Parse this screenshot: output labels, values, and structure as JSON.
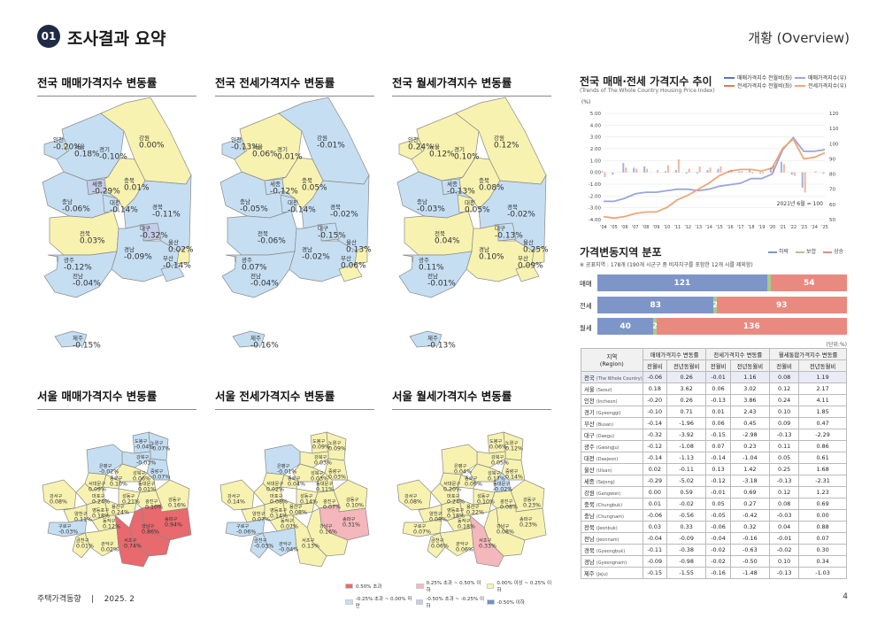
{
  "header": {
    "section_number": "01",
    "section_title": "조사결과 요약",
    "overview": "개황 (Overview)"
  },
  "legend_colors": {
    "over_050": "#e8696e",
    "p025_050": "#f4b7bb",
    "p000_025": "#f7f2b0",
    "m025_000": "#c5def2",
    "m050_m025": "#c3cce8",
    "under_m050": "#6f8fc6"
  },
  "maps": {
    "nation_sale": {
      "title": "전국 매매가격지수 변동률",
      "labels": [
        {
          "name": "인천",
          "value": "-0.20%"
        },
        {
          "name": "서울",
          "value": "0.18%"
        },
        {
          "name": "경기",
          "value": "-0.10%"
        },
        {
          "name": "강원",
          "value": "0.00%"
        },
        {
          "name": "세종",
          "value": "-0.29%"
        },
        {
          "name": "충북",
          "value": "0.01%"
        },
        {
          "name": "충남",
          "value": "-0.06%"
        },
        {
          "name": "대전",
          "value": "-0.14%"
        },
        {
          "name": "경북",
          "value": "-0.11%"
        },
        {
          "name": "대구",
          "value": "-0.32%"
        },
        {
          "name": "울산",
          "value": "0.02%"
        },
        {
          "name": "전북",
          "value": "0.03%"
        },
        {
          "name": "경남",
          "value": "-0.09%"
        },
        {
          "name": "광주",
          "value": "-0.12%"
        },
        {
          "name": "부산",
          "value": "-0.14%"
        },
        {
          "name": "전남",
          "value": "-0.04%"
        },
        {
          "name": "제주",
          "value": "-0.15%"
        }
      ]
    },
    "nation_jeonse": {
      "title": "전국 전세가격지수 변동률",
      "labels": [
        {
          "name": "인천",
          "value": "-0.13%"
        },
        {
          "name": "서울",
          "value": "0.06%"
        },
        {
          "name": "경기",
          "value": "0.01%"
        },
        {
          "name": "강원",
          "value": "-0.01%"
        },
        {
          "name": "세종",
          "value": "-0.12%"
        },
        {
          "name": "충북",
          "value": "0.05%"
        },
        {
          "name": "충남",
          "value": "-0.05%"
        },
        {
          "name": "대전",
          "value": "-0.14%"
        },
        {
          "name": "경북",
          "value": "-0.02%"
        },
        {
          "name": "대구",
          "value": "-0.15%"
        },
        {
          "name": "울산",
          "value": "0.13%"
        },
        {
          "name": "전북",
          "value": "-0.06%"
        },
        {
          "name": "경남",
          "value": "-0.02%"
        },
        {
          "name": "광주",
          "value": "0.07%"
        },
        {
          "name": "부산",
          "value": "0.06%"
        },
        {
          "name": "전남",
          "value": "-0.04%"
        },
        {
          "name": "제주",
          "value": "-0.16%"
        }
      ]
    },
    "nation_monthly": {
      "title": "전국 월세가격지수 변동률",
      "labels": [
        {
          "name": "인천",
          "value": "0.24%"
        },
        {
          "name": "서울",
          "value": "0.12%"
        },
        {
          "name": "경기",
          "value": "0.10%"
        },
        {
          "name": "강원",
          "value": "0.12%"
        },
        {
          "name": "세종",
          "value": "-0.13%"
        },
        {
          "name": "충북",
          "value": "0.08%"
        },
        {
          "name": "충남",
          "value": "-0.03%"
        },
        {
          "name": "대전",
          "value": "0.05%"
        },
        {
          "name": "경북",
          "value": "-0.02%"
        },
        {
          "name": "대구",
          "value": "-0.13%"
        },
        {
          "name": "울산",
          "value": "0.25%"
        },
        {
          "name": "전북",
          "value": "0.04%"
        },
        {
          "name": "경남",
          "value": "0.10%"
        },
        {
          "name": "광주",
          "value": "0.11%"
        },
        {
          "name": "부산",
          "value": "0.09%"
        },
        {
          "name": "전남",
          "value": "-0.01%"
        },
        {
          "name": "제주",
          "value": "-0.13%"
        }
      ]
    },
    "seoul_sale": {
      "title": "서울 매매가격지수 변동률",
      "labels": [
        {
          "name": "도봉구",
          "value": "-0.04%"
        },
        {
          "name": "노원구",
          "value": "-0.07%"
        },
        {
          "name": "강북구",
          "value": "-0.03%"
        },
        {
          "name": "은평구",
          "value": "-0.02%"
        },
        {
          "name": "성북구",
          "value": "0.06%"
        },
        {
          "name": "중랑구",
          "value": "-0.07%"
        },
        {
          "name": "종로구",
          "value": "0.10%"
        },
        {
          "name": "동대문구",
          "value": "0.01%"
        },
        {
          "name": "서대문구",
          "value": "0.09%"
        },
        {
          "name": "강서구",
          "value": "0.08%"
        },
        {
          "name": "마포구",
          "value": "0.24%"
        },
        {
          "name": "성동구",
          "value": "0.21%"
        },
        {
          "name": "광진구",
          "value": "0.10%"
        },
        {
          "name": "강동구",
          "value": "0.16%"
        },
        {
          "name": "양천구",
          "value": "0.11%"
        },
        {
          "name": "영등포구",
          "value": "0.18%"
        },
        {
          "name": "용산구",
          "value": "0.24%"
        },
        {
          "name": "송파구",
          "value": "0.94%"
        },
        {
          "name": "구로구",
          "value": "-0.03%"
        },
        {
          "name": "동작구",
          "value": "0.12%"
        },
        {
          "name": "강남구",
          "value": "0.86%"
        },
        {
          "name": "금천구",
          "value": "0.01%"
        },
        {
          "name": "관악구",
          "value": "0.02%"
        },
        {
          "name": "서초구",
          "value": "0.74%"
        }
      ]
    },
    "seoul_jeonse": {
      "title": "서울 전세가격지수 변동률",
      "labels": [
        {
          "name": "도봉구",
          "value": "0.09%"
        },
        {
          "name": "노원구",
          "value": "0.09%"
        },
        {
          "name": "강북구",
          "value": "0.03%"
        },
        {
          "name": "은평구",
          "value": "-0.01%"
        },
        {
          "name": "성북구",
          "value": "0.03%"
        },
        {
          "name": "중랑구",
          "value": "0.03%"
        },
        {
          "name": "종로구",
          "value": "0.04%"
        },
        {
          "name": "동대문구",
          "value": "0.11%"
        },
        {
          "name": "서대문구",
          "value": "0.02%"
        },
        {
          "name": "강서구",
          "value": "0.14%"
        },
        {
          "name": "마포구",
          "value": "0.08%"
        },
        {
          "name": "성동구",
          "value": "0.14%"
        },
        {
          "name": "광진구",
          "value": "0.07%"
        },
        {
          "name": "강동구",
          "value": "0.10%"
        },
        {
          "name": "양천구",
          "value": "0.07%"
        },
        {
          "name": "영등포구",
          "value": "0.14%"
        },
        {
          "name": "용산구",
          "value": "0.08%"
        },
        {
          "name": "송파구",
          "value": "0.31%"
        },
        {
          "name": "구로구",
          "value": "-0.06%"
        },
        {
          "name": "동작구",
          "value": "0.07%"
        },
        {
          "name": "강남구",
          "value": "0.16%"
        },
        {
          "name": "금천구",
          "value": "-0.03%"
        },
        {
          "name": "관악구",
          "value": "-0.04%"
        },
        {
          "name": "서초구",
          "value": "0.13%"
        }
      ]
    },
    "seoul_monthly": {
      "title": "서울 월세가격지수 변동률",
      "labels": [
        {
          "name": "도봉구",
          "value": "0.06%"
        },
        {
          "name": "노원구",
          "value": "0.12%"
        },
        {
          "name": "강북구",
          "value": "0.05%"
        },
        {
          "name": "은평구",
          "value": "0.04%"
        },
        {
          "name": "성북구",
          "value": "0.17%"
        },
        {
          "name": "중랑구",
          "value": "0.14%"
        },
        {
          "name": "종로구",
          "value": "0.09%"
        },
        {
          "name": "동대문구",
          "value": "-0.02%"
        },
        {
          "name": "서대문구",
          "value": "0.20%"
        },
        {
          "name": "강서구",
          "value": "0.08%"
        },
        {
          "name": "마포구",
          "value": "0.24%"
        },
        {
          "name": "성동구",
          "value": "0.10%"
        },
        {
          "name": "광진구",
          "value": "0.08%"
        },
        {
          "name": "강동구",
          "value": "0.23%"
        },
        {
          "name": "양천구",
          "value": "0.08%"
        },
        {
          "name": "영등포구",
          "value": "0.18%"
        },
        {
          "name": "용산구",
          "value": "0.22%"
        },
        {
          "name": "송파구",
          "value": "0.23%"
        },
        {
          "name": "구로구",
          "value": "0.07%"
        },
        {
          "name": "동작구",
          "value": "0.18%"
        },
        {
          "name": "강남구",
          "value": "0.08%"
        },
        {
          "name": "금천구",
          "value": "0.06%"
        },
        {
          "name": "관악구",
          "value": "0.06%"
        },
        {
          "name": "서초구",
          "value": "0.33%"
        }
      ]
    }
  },
  "map_legend": [
    "0.50% 초과",
    "0.25% 초과 ~ 0.50% 이하",
    "0.00% 이상 ~ 0.25% 이하",
    "-0.25% 초과 ~ 0.00% 미만",
    "-0.50% 초과 ~ -0.25% 이하",
    "-0.50% 이하"
  ],
  "trend_chart": {
    "title": "전국 매매·전세 가격지수 추이",
    "subtitle": "(Trends of The Whole Country Housing Price Index)",
    "left_unit": "(%)",
    "note": "2021년 6월 = 100",
    "legend": [
      {
        "label": "매매가격지수 전월비(좌)",
        "color": "#5b73b9"
      },
      {
        "label": "매매가격지수(우)",
        "color": "#9aa6dc"
      },
      {
        "label": "전세가격지수 전월비(좌)",
        "color": "#e07a5a"
      },
      {
        "label": "전세가격지수(우)",
        "color": "#f0a576"
      }
    ]
  },
  "chart_data": {
    "type": "line",
    "x": [
      "'04",
      "'05",
      "'06",
      "'07",
      "'08",
      "'09",
      "'10",
      "'11",
      "'12",
      "'13",
      "'14",
      "'15",
      "'16",
      "'17",
      "'18",
      "'19",
      "'20",
      "'21",
      "'22",
      "'23",
      "'24",
      "'25"
    ],
    "left_ylim": [
      -4,
      5
    ],
    "left_ticks": [
      "5.00",
      "4.00",
      "3.00",
      "2.00",
      "1.00",
      "0.00",
      "-1.00",
      "-2.00",
      "-3.00",
      "-4.00"
    ],
    "right_ylim": [
      50,
      120
    ],
    "right_ticks": [
      "120",
      "110",
      "100",
      "90",
      "80",
      "70",
      "60",
      "50"
    ],
    "series": [
      {
        "name": "매매가격지수(우)",
        "axis": "right",
        "values": [
          62,
          62,
          64,
          67,
          68,
          68,
          69,
          70,
          70,
          69,
          70,
          72,
          73,
          74,
          77,
          77,
          80,
          96,
          104,
          95,
          95,
          96
        ]
      },
      {
        "name": "전세가격지수(우)",
        "axis": "right",
        "values": [
          52,
          51,
          52,
          54,
          55,
          55,
          58,
          63,
          66,
          70,
          74,
          79,
          82,
          83,
          83,
          82,
          84,
          97,
          103,
          90,
          91,
          94
        ]
      },
      {
        "name": "매매가격지수 전월비(좌)",
        "axis": "left",
        "values": [
          0.1,
          -0.2,
          0.8,
          0.4,
          0.5,
          0.0,
          0.1,
          0.2,
          -0.1,
          -0.1,
          0.2,
          0.3,
          0.1,
          0.1,
          0.2,
          -0.1,
          0.4,
          0.9,
          -0.2,
          -1.3,
          0.0,
          -0.1
        ]
      },
      {
        "name": "전세가격지수 전월비(좌)",
        "axis": "left",
        "values": [
          -0.4,
          0.0,
          0.4,
          0.3,
          0.3,
          0.2,
          0.6,
          1.1,
          0.3,
          0.5,
          0.4,
          0.5,
          0.2,
          0.1,
          -0.1,
          -0.1,
          0.6,
          0.7,
          -0.3,
          -1.7,
          0.1,
          0.0
        ]
      }
    ]
  },
  "distribution": {
    "title": "가격변동지역 분포",
    "note": "※ 공표지역 : 178개 (190개 시군구 중 비자치구를 포함한 12개 시를 제외함)",
    "legend": [
      {
        "label": "하락",
        "color": "#7e95c8"
      },
      {
        "label": "보합",
        "color": "#a8c98a"
      },
      {
        "label": "상승",
        "color": "#e98a80"
      }
    ],
    "rows": [
      {
        "label": "매매",
        "fall": 121,
        "flat": 3,
        "rise": 54,
        "fall_label": "121",
        "flat_label": "",
        "rise_label": "54"
      },
      {
        "label": "전세",
        "fall": 83,
        "flat": 2,
        "rise": 93,
        "fall_label": "83",
        "flat_label": "2",
        "rise_label": "93"
      },
      {
        "label": "월세",
        "fall": 40,
        "flat": 2,
        "rise": 136,
        "fall_label": "40",
        "flat_label": "2",
        "rise_label": "136"
      }
    ]
  },
  "table": {
    "unit": "(단위:%)",
    "h_region": "지역",
    "h_region_en": "(Region)",
    "groups": [
      "매매가격지수 변동률",
      "전세가격지수 변동률",
      "월세통합가격지수 변동률"
    ],
    "subheaders": [
      "전월비",
      "전년동월비",
      "전월비",
      "전년동월비",
      "전월비",
      "전년동월비"
    ],
    "rows": [
      {
        "ko": "전국",
        "en": "(The Whole Country)",
        "v": [
          "-0.06",
          "0.26",
          "-0.01",
          "1.16",
          "0.08",
          "1.19"
        ]
      },
      {
        "ko": "서울",
        "en": "(Seoul)",
        "v": [
          "0.18",
          "3.62",
          "0.06",
          "3.02",
          "0.12",
          "2.17"
        ]
      },
      {
        "ko": "인천",
        "en": "(Incheon)",
        "v": [
          "-0.20",
          "0.26",
          "-0.13",
          "3.86",
          "0.24",
          "4.11"
        ]
      },
      {
        "ko": "경기",
        "en": "(Gyeonggi)",
        "v": [
          "-0.10",
          "0.71",
          "0.01",
          "2.43",
          "0.10",
          "1.85"
        ]
      },
      {
        "ko": "부산",
        "en": "(Busan)",
        "v": [
          "-0.14",
          "-1.96",
          "0.06",
          "0.45",
          "0.09",
          "0.47"
        ]
      },
      {
        "ko": "대구",
        "en": "(Daegu)",
        "v": [
          "-0.32",
          "-3.92",
          "-0.15",
          "-2.98",
          "-0.13",
          "-2.29"
        ]
      },
      {
        "ko": "광주",
        "en": "(Gwangju)",
        "v": [
          "-0.12",
          "-1.08",
          "0.07",
          "0.23",
          "0.11",
          "0.86"
        ]
      },
      {
        "ko": "대전",
        "en": "(Daejeon)",
        "v": [
          "-0.14",
          "-1.13",
          "-0.14",
          "-1.04",
          "0.05",
          "0.61"
        ]
      },
      {
        "ko": "울산",
        "en": "(Ulsan)",
        "v": [
          "0.02",
          "-0.11",
          "0.13",
          "1.42",
          "0.25",
          "1.68"
        ]
      },
      {
        "ko": "세종",
        "en": "(Sejong)",
        "v": [
          "-0.29",
          "-5.02",
          "-0.12",
          "-3.18",
          "-0.13",
          "-2.31"
        ]
      },
      {
        "ko": "강원",
        "en": "(Gangwon)",
        "v": [
          "0.00",
          "0.59",
          "-0.01",
          "0.69",
          "0.12",
          "1.23"
        ]
      },
      {
        "ko": "충북",
        "en": "(Chungbuk)",
        "v": [
          "0.01",
          "-0.02",
          "0.05",
          "0.27",
          "0.08",
          "0.69"
        ]
      },
      {
        "ko": "충남",
        "en": "(Chungnam)",
        "v": [
          "-0.06",
          "-0.56",
          "-0.05",
          "-0.42",
          "-0.03",
          "0.00"
        ]
      },
      {
        "ko": "전북",
        "en": "(Jeonbuk)",
        "v": [
          "0.03",
          "0.33",
          "-0.06",
          "0.32",
          "0.04",
          "0.88"
        ]
      },
      {
        "ko": "전남",
        "en": "(Jeonnam)",
        "v": [
          "-0.04",
          "-0.09",
          "-0.04",
          "-0.16",
          "-0.01",
          "0.07"
        ]
      },
      {
        "ko": "경북",
        "en": "(Gyeongbuk)",
        "v": [
          "-0.11",
          "-0.38",
          "-0.02",
          "-0.63",
          "-0.02",
          "0.30"
        ]
      },
      {
        "ko": "경남",
        "en": "(Gyeongnam)",
        "v": [
          "-0.09",
          "-0.98",
          "-0.02",
          "-0.50",
          "0.10",
          "0.34"
        ]
      },
      {
        "ko": "제주",
        "en": "(Jeju)",
        "v": [
          "-0.15",
          "-1.55",
          "-0.16",
          "-1.48",
          "-0.13",
          "-1.03"
        ]
      }
    ]
  },
  "footer": {
    "publication": "주택가격동향",
    "separator": "|",
    "date": "2025. 2",
    "page": "4"
  }
}
